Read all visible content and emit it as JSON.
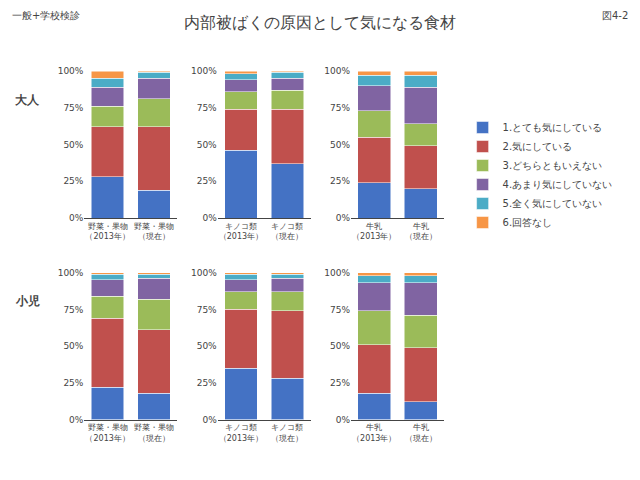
{
  "title": "内部被ばくの原因として気になる食材",
  "subtitle": "一般+学校検診",
  "annotations": [
    "図4-2"
  ],
  "legend": "right",
  "chart_data": [
    {
      "type": "bar",
      "stacked": true,
      "grid": false,
      "annotations": [
        "大人"
      ],
      "categories": [
        "野菜・果物\n（2013年）",
        "野菜・果物\n（現在）"
      ],
      "series": [
        {
          "name": "1.とても気にしている",
          "color": "#4472C4",
          "values": [
            28,
            19
          ]
        },
        {
          "name": "2.気にしている",
          "color": "#C0504D",
          "values": [
            34,
            43
          ]
        },
        {
          "name": "3.どちらともいえない",
          "color": "#9BBB59",
          "values": [
            14,
            19
          ]
        },
        {
          "name": "4.あまり気にしていない",
          "color": "#8064A2",
          "values": [
            13,
            14
          ]
        },
        {
          "name": "5.全く気にしていない",
          "color": "#4BACC6",
          "values": [
            6,
            4
          ]
        },
        {
          "name": "6.回答なし",
          "color": "#F79646",
          "values": [
            5,
            1
          ]
        }
      ],
      "ylim": [
        0,
        100
      ],
      "yticks": [
        {
          "value": 0,
          "label": "0%"
        },
        {
          "value": 25,
          "label": "25%"
        },
        {
          "value": 50,
          "label": "50%"
        },
        {
          "value": 75,
          "label": "75%"
        },
        {
          "value": 100,
          "label": "100%"
        }
      ]
    },
    {
      "type": "bar",
      "stacked": true,
      "grid": false,
      "categories": [
        "キノコ類\n（2013年）",
        "キノコ類\n（現在）"
      ],
      "series": [
        {
          "name": "1.とても気にしている",
          "color": "#4472C4",
          "values": [
            46,
            37
          ]
        },
        {
          "name": "2.気にしている",
          "color": "#C0504D",
          "values": [
            28,
            37
          ]
        },
        {
          "name": "3.どちらともいえない",
          "color": "#9BBB59",
          "values": [
            12,
            13
          ]
        },
        {
          "name": "4.あまり気にしていない",
          "color": "#8064A2",
          "values": [
            8,
            8
          ]
        },
        {
          "name": "5.全く気にしていない",
          "color": "#4BACC6",
          "values": [
            4,
            4
          ]
        },
        {
          "name": "6.回答なし",
          "color": "#F79646",
          "values": [
            2,
            1
          ]
        }
      ],
      "ylim": [
        0,
        100
      ],
      "yticks": [
        {
          "value": 0,
          "label": "0%"
        },
        {
          "value": 25,
          "label": "25%"
        },
        {
          "value": 50,
          "label": "50%"
        },
        {
          "value": 75,
          "label": "75%"
        },
        {
          "value": 100,
          "label": "100%"
        }
      ]
    },
    {
      "type": "bar",
      "stacked": true,
      "grid": false,
      "categories": [
        "牛乳\n（2013年）",
        "牛乳\n（現在）"
      ],
      "series": [
        {
          "name": "1.とても気にしている",
          "color": "#4472C4",
          "values": [
            24,
            20
          ]
        },
        {
          "name": "2.気にしている",
          "color": "#C0504D",
          "values": [
            31,
            29
          ]
        },
        {
          "name": "3.どちらともいえない",
          "color": "#9BBB59",
          "values": [
            18,
            15
          ]
        },
        {
          "name": "4.あまり気にしていない",
          "color": "#8064A2",
          "values": [
            17,
            25
          ]
        },
        {
          "name": "5.全く気にしていない",
          "color": "#4BACC6",
          "values": [
            7,
            8
          ]
        },
        {
          "name": "6.回答なし",
          "color": "#F79646",
          "values": [
            3,
            3
          ]
        }
      ],
      "ylim": [
        0,
        100
      ],
      "yticks": [
        {
          "value": 0,
          "label": "0%"
        },
        {
          "value": 25,
          "label": "25%"
        },
        {
          "value": 50,
          "label": "50%"
        },
        {
          "value": 75,
          "label": "75%"
        },
        {
          "value": 100,
          "label": "100%"
        }
      ]
    },
    {
      "type": "bar",
      "stacked": true,
      "grid": false,
      "annotations": [
        "小児"
      ],
      "categories": [
        "野菜・果物\n（2013年）",
        "野菜・果物\n（現在）"
      ],
      "series": [
        {
          "name": "1.とても気にしている",
          "color": "#4472C4",
          "values": [
            22,
            18
          ]
        },
        {
          "name": "2.気にしている",
          "color": "#C0504D",
          "values": [
            47,
            43
          ]
        },
        {
          "name": "3.どちらともいえない",
          "color": "#9BBB59",
          "values": [
            15,
            21
          ]
        },
        {
          "name": "4.あまり気にしていない",
          "color": "#8064A2",
          "values": [
            11,
            14
          ]
        },
        {
          "name": "5.全く気にしていない",
          "color": "#4BACC6",
          "values": [
            4,
            3
          ]
        },
        {
          "name": "6.回答なし",
          "color": "#F79646",
          "values": [
            1,
            1
          ]
        }
      ],
      "ylim": [
        0,
        100
      ],
      "yticks": [
        {
          "value": 0,
          "label": "0%"
        },
        {
          "value": 25,
          "label": "25%"
        },
        {
          "value": 50,
          "label": "50%"
        },
        {
          "value": 75,
          "label": "75%"
        },
        {
          "value": 100,
          "label": "100%"
        }
      ]
    },
    {
      "type": "bar",
      "stacked": true,
      "grid": false,
      "categories": [
        "キノコ類\n（2013年）",
        "キノコ類\n（現在）"
      ],
      "series": [
        {
          "name": "1.とても気にしている",
          "color": "#4472C4",
          "values": [
            35,
            28
          ]
        },
        {
          "name": "2.気にしている",
          "color": "#C0504D",
          "values": [
            40,
            46
          ]
        },
        {
          "name": "3.どちらともいえない",
          "color": "#9BBB59",
          "values": [
            12,
            13
          ]
        },
        {
          "name": "4.あまり気にしていない",
          "color": "#8064A2",
          "values": [
            8,
            9
          ]
        },
        {
          "name": "5.全く気にしていない",
          "color": "#4BACC6",
          "values": [
            4,
            3
          ]
        },
        {
          "name": "6.回答なし",
          "color": "#F79646",
          "values": [
            1,
            1
          ]
        }
      ],
      "ylim": [
        0,
        100
      ],
      "yticks": [
        {
          "value": 0,
          "label": "0%"
        },
        {
          "value": 25,
          "label": "25%"
        },
        {
          "value": 50,
          "label": "50%"
        },
        {
          "value": 75,
          "label": "75%"
        },
        {
          "value": 100,
          "label": "100%"
        }
      ]
    },
    {
      "type": "bar",
      "stacked": true,
      "grid": false,
      "categories": [
        "牛乳\n（2013年）",
        "牛乳\n（現在）"
      ],
      "series": [
        {
          "name": "1.とても気にしている",
          "color": "#4472C4",
          "values": [
            18,
            12
          ]
        },
        {
          "name": "2.気にしている",
          "color": "#C0504D",
          "values": [
            33,
            37
          ]
        },
        {
          "name": "3.どちらともいえない",
          "color": "#9BBB59",
          "values": [
            23,
            22
          ]
        },
        {
          "name": "4.あまり気にしていない",
          "color": "#8064A2",
          "values": [
            19,
            22
          ]
        },
        {
          "name": "5.全く気にしていない",
          "color": "#4BACC6",
          "values": [
            5,
            5
          ]
        },
        {
          "name": "6.回答なし",
          "color": "#F79646",
          "values": [
            2,
            2
          ]
        }
      ],
      "ylim": [
        0,
        100
      ],
      "yticks": [
        {
          "value": 0,
          "label": "0%"
        },
        {
          "value": 25,
          "label": "25%"
        },
        {
          "value": 50,
          "label": "50%"
        },
        {
          "value": 75,
          "label": "75%"
        },
        {
          "value": 100,
          "label": "100%"
        }
      ]
    }
  ]
}
